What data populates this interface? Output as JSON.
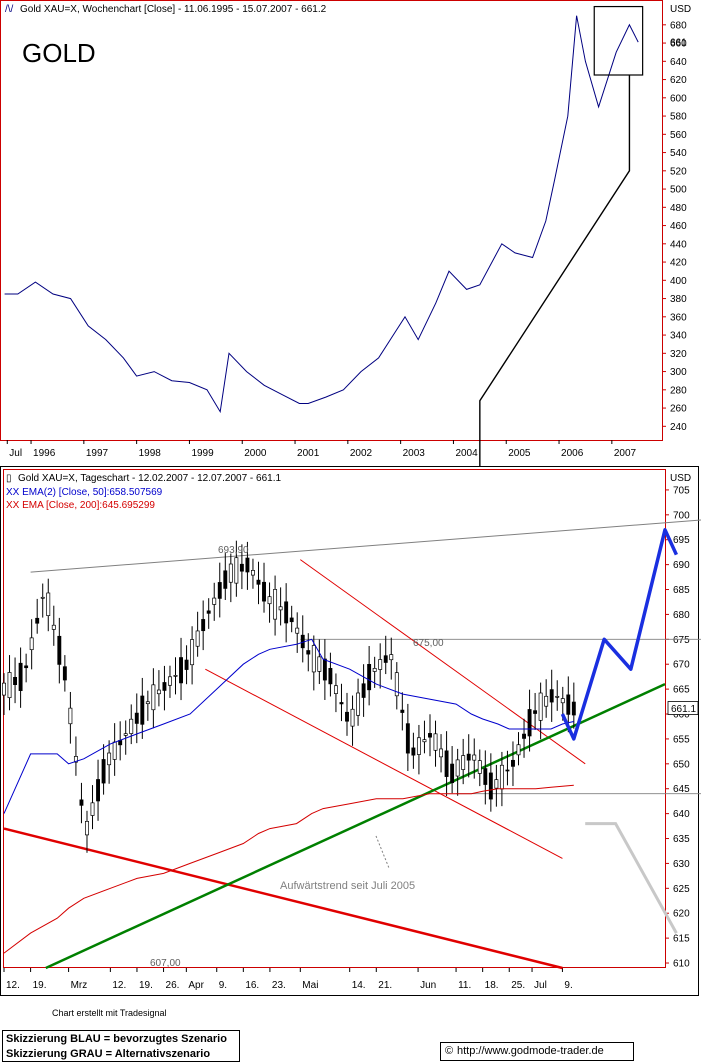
{
  "colors": {
    "frame": "#000000",
    "axis_red": "#cc0000",
    "price": "#000080",
    "ema50": "#0000cc",
    "ema200": "#d40000",
    "trend_green": "#008000",
    "trend_red": "#e00000",
    "scenario_blue": "#1a2fe0",
    "scenario_grey": "#c8c8c8",
    "channel_red": "#e00000",
    "guide_grey": "#808080"
  },
  "top_chart": {
    "legend_icon": "line-chart-icon",
    "legend": "Gold XAU=X, Wochenchart [Close] - 11.06.1995 - 15.07.2007 - 661.2",
    "title": "GOLD",
    "currency": "USD",
    "current_value_label": "661",
    "y_ticks": [
      240,
      260,
      280,
      300,
      320,
      340,
      360,
      380,
      400,
      420,
      440,
      460,
      480,
      500,
      520,
      540,
      560,
      580,
      600,
      620,
      640,
      660,
      680
    ],
    "x_labels": [
      "Jul",
      "1996",
      "1997",
      "1998",
      "1999",
      "2000",
      "2001",
      "2002",
      "2003",
      "2004",
      "2005",
      "2006",
      "2007"
    ]
  },
  "bottom_chart": {
    "legend_icon": "candlestick-icon",
    "legend": "Gold XAU=X, Tageschart - 12.02.2007 - 12.07.2007 - 661.1",
    "ema50_label": "XX EMA(2) [Close, 50]:658.507569",
    "ema200_label": "XX EMA [Close, 200]:645.695299",
    "currency": "USD",
    "current_value_label": "661.1",
    "y_ticks": [
      610,
      615,
      620,
      625,
      630,
      635,
      640,
      645,
      650,
      655,
      660,
      665,
      670,
      675,
      680,
      685,
      690,
      695,
      700,
      705
    ],
    "x_labels": [
      "12.",
      "19.",
      "Mrz",
      "12.",
      "19.",
      "26.",
      "Apr",
      "9.",
      "16.",
      "23.",
      "Mai",
      "14.",
      "21.",
      "Jun",
      "11.",
      "18.",
      "25.",
      "Jul",
      "9."
    ],
    "annotations": {
      "high": "693,90",
      "resistance": "675,00",
      "low": "607,00",
      "trend": "Aufwärtstrend seit Juli 2005"
    }
  },
  "footer": {
    "credit": "Chart erstellt mit Tradesignal",
    "legend_blue": "Skizzierung BLAU = bevorzugtes Szenario",
    "legend_grey": "Skizzierung GRAU = Alternativszenario",
    "copyright_icon": "copyright-icon",
    "url": "http://www.godmode-trader.de"
  },
  "chart_data": [
    {
      "type": "line",
      "title": "GOLD",
      "ylabel": "USD",
      "ylim": [
        225,
        705
      ],
      "x": [
        "1995-07",
        "1995-10",
        "1996-02",
        "1996-06",
        "1996-10",
        "1997-02",
        "1997-06",
        "1997-10",
        "1998-01",
        "1998-05",
        "1998-09",
        "1999-01",
        "1999-05",
        "1999-08",
        "1999-10",
        "2000-02",
        "2000-06",
        "2000-10",
        "2001-02",
        "2001-04",
        "2001-08",
        "2001-12",
        "2002-04",
        "2002-08",
        "2002-12",
        "2003-02",
        "2003-05",
        "2003-09",
        "2003-12",
        "2004-04",
        "2004-07",
        "2004-12",
        "2005-03",
        "2005-07",
        "2005-10",
        "2005-12",
        "2006-03",
        "2006-05",
        "2006-07",
        "2006-10",
        "2007-02",
        "2007-05",
        "2007-07"
      ],
      "series": [
        {
          "values": [
            385,
            385,
            398,
            385,
            380,
            350,
            335,
            315,
            295,
            300,
            290,
            288,
            280,
            256,
            320,
            300,
            285,
            275,
            265,
            265,
            272,
            280,
            300,
            315,
            345,
            360,
            335,
            375,
            410,
            390,
            395,
            440,
            430,
            425,
            465,
            510,
            580,
            690,
            640,
            590,
            650,
            680,
            661
          ]
        }
      ]
    },
    {
      "type": "line",
      "title": "",
      "ylabel": "USD",
      "ylim": [
        609,
        709
      ],
      "x": [
        "12.02.2007",
        "19.02.2007",
        "26.02.2007",
        "01.03.2007",
        "05.03.2007",
        "12.03.2007",
        "19.03.2007",
        "26.03.2007",
        "02.04.2007",
        "09.04.2007",
        "16.04.2007",
        "20.04.2007",
        "23.04.2007",
        "30.04.2007",
        "04.05.2007",
        "07.05.2007",
        "14.05.2007",
        "21.05.2007",
        "28.05.2007",
        "04.06.2007",
        "11.06.2007",
        "15.06.2007",
        "18.06.2007",
        "22.06.2007",
        "25.06.2007",
        "02.07.2007",
        "06.07.2007",
        "09.07.2007",
        "12.07.2007"
      ],
      "series": [
        {
          "name": "Gold XAU=X",
          "values": [
            665,
            668,
            685,
            668,
            636,
            650,
            656,
            662,
            666,
            670,
            680,
            688,
            690,
            683,
            680,
            672,
            668,
            658,
            668,
            672,
            652,
            656,
            648,
            652,
            645,
            650,
            660,
            664,
            661.1
          ]
        },
        {
          "name": "EMA(2) [Close, 50]",
          "values": [
            640,
            652,
            652,
            650,
            651,
            654,
            656,
            658,
            660,
            665,
            670,
            672,
            673,
            674,
            675,
            671,
            669,
            666,
            664,
            663,
            662,
            660,
            659,
            658,
            657,
            657,
            657,
            658,
            658.5
          ]
        },
        {
          "name": "EMA [Close, 200]",
          "values": [
            612,
            616,
            619,
            621,
            623,
            625,
            627,
            628,
            630,
            632,
            634,
            636,
            637,
            638,
            640,
            641,
            642,
            643,
            643,
            644,
            644,
            644,
            644.5,
            645,
            645,
            645,
            645.3,
            645.5,
            645.7
          ]
        }
      ]
    }
  ]
}
